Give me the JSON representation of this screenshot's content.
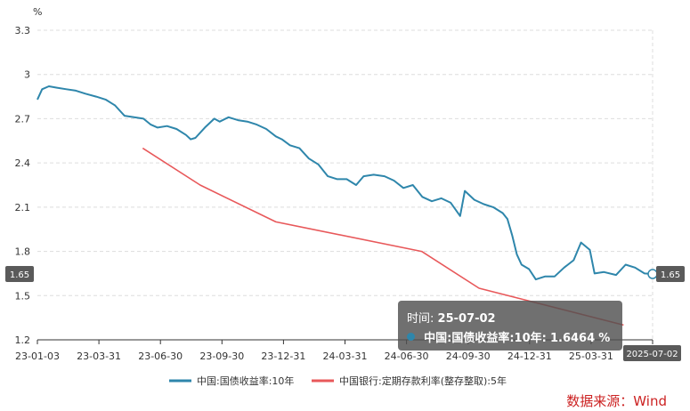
{
  "chart_data": {
    "type": "line",
    "unit": "%",
    "ylim": [
      1.2,
      3.3
    ],
    "y_ticks": [
      "3.3",
      "3",
      "2.7",
      "2.4",
      "2.1",
      "1.8",
      "1.5",
      "1.2"
    ],
    "x_ticks": [
      "23-01-03",
      "23-03-31",
      "23-06-30",
      "23-09-30",
      "23-12-31",
      "24-03-31",
      "24-06-30",
      "24-09-30",
      "24-12-31",
      "25-03-31",
      "2025-07-02"
    ],
    "grid": true,
    "legend_position": "bottom",
    "series": [
      {
        "name": "中国:国债收益率:10年",
        "color": "#2e86ab",
        "points": [
          [
            "2023-01-03",
            2.83
          ],
          [
            "2023-01-10",
            2.9
          ],
          [
            "2023-01-20",
            2.92
          ],
          [
            "2023-02-01",
            2.91
          ],
          [
            "2023-02-15",
            2.9
          ],
          [
            "2023-03-01",
            2.89
          ],
          [
            "2023-03-15",
            2.87
          ],
          [
            "2023-03-31",
            2.85
          ],
          [
            "2023-04-14",
            2.83
          ],
          [
            "2023-04-28",
            2.79
          ],
          [
            "2023-05-12",
            2.72
          ],
          [
            "2023-05-26",
            2.71
          ],
          [
            "2023-06-09",
            2.7
          ],
          [
            "2023-06-20",
            2.66
          ],
          [
            "2023-06-30",
            2.64
          ],
          [
            "2023-07-14",
            2.65
          ],
          [
            "2023-07-28",
            2.63
          ],
          [
            "2023-08-11",
            2.59
          ],
          [
            "2023-08-18",
            2.56
          ],
          [
            "2023-08-25",
            2.57
          ],
          [
            "2023-09-08",
            2.64
          ],
          [
            "2023-09-22",
            2.7
          ],
          [
            "2023-09-30",
            2.68
          ],
          [
            "2023-10-13",
            2.71
          ],
          [
            "2023-10-27",
            2.69
          ],
          [
            "2023-11-10",
            2.68
          ],
          [
            "2023-11-24",
            2.66
          ],
          [
            "2023-12-08",
            2.63
          ],
          [
            "2023-12-22",
            2.58
          ],
          [
            "2023-12-31",
            2.56
          ],
          [
            "2024-01-12",
            2.52
          ],
          [
            "2024-01-26",
            2.5
          ],
          [
            "2024-02-09",
            2.43
          ],
          [
            "2024-02-23",
            2.39
          ],
          [
            "2024-03-08",
            2.31
          ],
          [
            "2024-03-22",
            2.29
          ],
          [
            "2024-04-05",
            2.29
          ],
          [
            "2024-04-19",
            2.25
          ],
          [
            "2024-04-30",
            2.31
          ],
          [
            "2024-05-15",
            2.32
          ],
          [
            "2024-05-31",
            2.31
          ],
          [
            "2024-06-14",
            2.28
          ],
          [
            "2024-06-28",
            2.23
          ],
          [
            "2024-07-12",
            2.25
          ],
          [
            "2024-07-26",
            2.17
          ],
          [
            "2024-08-09",
            2.14
          ],
          [
            "2024-08-23",
            2.16
          ],
          [
            "2024-09-06",
            2.13
          ],
          [
            "2024-09-20",
            2.04
          ],
          [
            "2024-09-27",
            2.21
          ],
          [
            "2024-10-11",
            2.15
          ],
          [
            "2024-10-25",
            2.12
          ],
          [
            "2024-11-08",
            2.1
          ],
          [
            "2024-11-22",
            2.06
          ],
          [
            "2024-11-29",
            2.02
          ],
          [
            "2024-12-06",
            1.91
          ],
          [
            "2024-12-13",
            1.78
          ],
          [
            "2024-12-20",
            1.71
          ],
          [
            "2024-12-31",
            1.68
          ],
          [
            "2025-01-10",
            1.61
          ],
          [
            "2025-01-24",
            1.63
          ],
          [
            "2025-02-07",
            1.63
          ],
          [
            "2025-02-21",
            1.69
          ],
          [
            "2025-03-07",
            1.74
          ],
          [
            "2025-03-18",
            1.86
          ],
          [
            "2025-03-31",
            1.81
          ],
          [
            "2025-04-07",
            1.65
          ],
          [
            "2025-04-21",
            1.66
          ],
          [
            "2025-05-09",
            1.64
          ],
          [
            "2025-05-23",
            1.71
          ],
          [
            "2025-06-06",
            1.69
          ],
          [
            "2025-06-20",
            1.65
          ],
          [
            "2025-07-02",
            1.6464
          ]
        ]
      },
      {
        "name": "中国银行:定期存款利率(整存整取):5年",
        "color": "#e8585a",
        "points": [
          [
            "2023-06-08",
            2.5
          ],
          [
            "2023-09-01",
            2.25
          ],
          [
            "2023-12-22",
            2.0
          ],
          [
            "2024-07-25",
            1.8
          ],
          [
            "2024-10-18",
            1.55
          ],
          [
            "2025-05-20",
            1.3
          ]
        ]
      }
    ],
    "last_value_label": "1.65",
    "tooltip": {
      "time_label": "时间:",
      "time_value": "25-07-02",
      "series_label": "中国:国债收益率:10年:",
      "value": "1.6464",
      "unit": "%"
    },
    "source": "数据来源：Wind"
  }
}
